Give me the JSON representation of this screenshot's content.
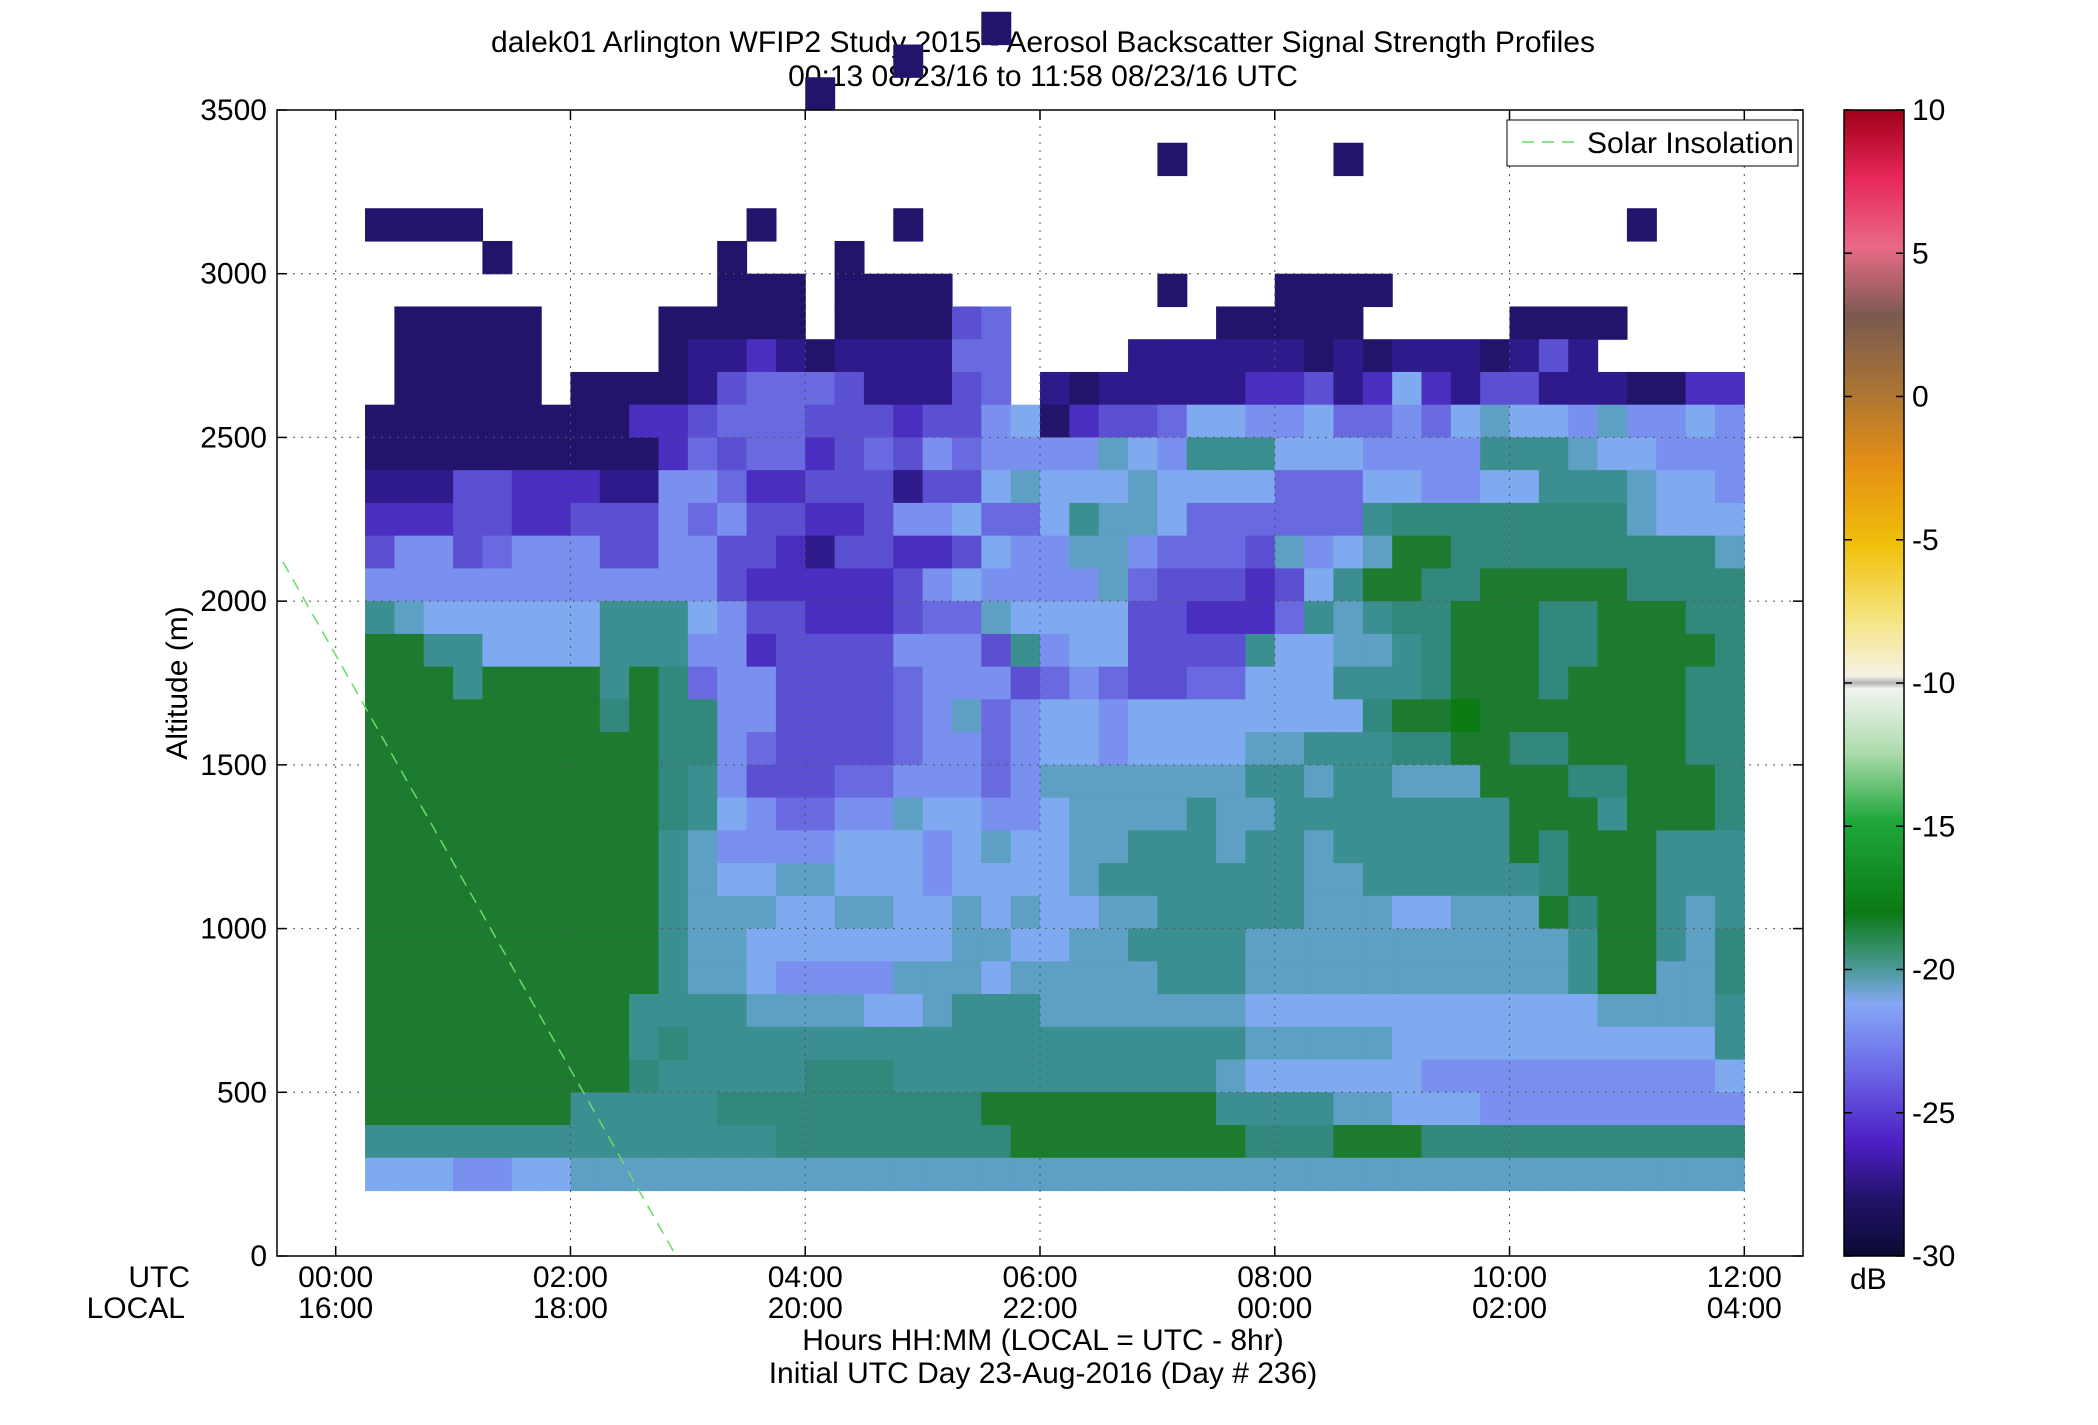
{
  "chart_data": {
    "type": "heatmap",
    "title": "dalek01 Arlington WFIP2 Study 2015 - Aerosol Backscatter Signal Strength Profiles",
    "subtitle": "00:13 08/23/16 to 11:58 08/23/16  UTC",
    "ylabel": "Altitude (m)",
    "xlabel": "Hours HH:MM  (LOCAL = UTC - 8hr)",
    "xlabel2": "Initial UTC Day 23-Aug-2016 (Day # 236)",
    "x_row_labels": [
      "UTC",
      "LOCAL"
    ],
    "xlim_hours": [
      -0.5,
      12.5
    ],
    "ylim": [
      0,
      3500
    ],
    "x_ticks_utc": [
      "00:00",
      "02:00",
      "04:00",
      "06:00",
      "08:00",
      "10:00",
      "12:00"
    ],
    "x_ticks_local": [
      "16:00",
      "18:00",
      "20:00",
      "22:00",
      "00:00",
      "02:00",
      "04:00"
    ],
    "x_tick_hours": [
      0,
      2,
      4,
      6,
      8,
      10,
      12
    ],
    "y_ticks": [
      "0",
      "500",
      "1000",
      "1500",
      "2000",
      "2500",
      "3000",
      "3500"
    ],
    "grid": true,
    "legend": {
      "entry": "Solar Insolation",
      "location": "top-right"
    },
    "colorbar": {
      "unit": "dB",
      "min": -30,
      "max": 10,
      "ticks": [
        "10",
        "5",
        "0",
        "-5",
        "-10",
        "-15",
        "-20",
        "-25",
        "-30"
      ]
    },
    "solar_line": {
      "points_hours_alt": [
        [
          -0.45,
          2120
        ],
        [
          2.9,
          0
        ]
      ],
      "color": "#66dd66"
    },
    "cells": {
      "x_start_hour": 0.25,
      "x_step_hour": 0.25,
      "n_columns": 47,
      "y_start_m": 200,
      "y_step_m": 100,
      "code_scale": "A=-20.5 B=-21.5 C=-22.5 D=-23.5 E=-24.5 F=-25.5 G=-26.5 H=-27.5 I=-28.5 J=-29.5 (dB); K..P = -16.5 to -19.5 dB; '.' = no data",
      "rows_top_down": [
        ".....................J.........................",
        "..................J............................",
        "...............J...............................",
        "...............................................",
        "...........................J.....J.............",
        "...............................................",
        "JJJJ.........J....J........................J...",
        "....J.......J...J..............................",
        "............JJJ.JJJJ.......J...JJJJ............",
        ".JJJJJ....JJJJJ.JJJJGF.......JJJJJ.....JJJJ....",
        ".JJJJJ....JIIHIJIIIIFF....IIIIIIJIJIIIJIGI.....",
        ".JJJJJ.JJJJIGFFFGIIIGF.IJIIIIIHHGIHDHIGGIIIJJHH",
        "JJJJJJJJJHHGFFFGGGHGGEDJHGGFDDEEDFFEFDCDDECEEDE",
        "JJJJJJJJJJHFGFFHGFGEFEEEECDEBBBDDDEEEEBBBCDDEEE",
        "IIIGGHHHIIEEFHHGGGIGGDCDDDCDDDDFFFDDEEDDBBBCDDE",
        "HHHGGHHGGGEFEGGHHGEEDFFDBCCDFFFFFFBAAAAAAAACDDD",
        "GEEGFEEEGGEEGGHIGGHHGDEECCEFFFGCEDCLLAAAAAAAAAC",
        "EEEEEEEEEEEEGHHHHHGEDEEEECFGGGHGDBLLAALLLLLAAAA",
        "BCDDDDDDBBBDEGGHHHGFFCDDDDGGHHHFBCBAALLLAALLLAA",
        "LLBBDDDDBBBEEHGGGGEEEGBEDDGGGGBDDCCBALLLAALLLLA",
        "LLLBLLLLBLAFEEGGGGFEEEGFEFGGFFDDDBBBALLLALLLLAA",
        "LLLLLLLLALAAEEGGGGFECFEDDEDDDDDDDDALLNLLLLLLLAA",
        "LLLLLLLLLLAAEFGGGGFEEFEDDEDDDDCCBBBAALLAALLLLAA",
        "LLLLLLLLLLABEGGGFFEEEFECCCCCCCBBCBBCCCLLLAALLLA",
        "LLLLLLLLLLABDEFFEECDDEEDCCCCBCCBBBBBBBBLLLBLLLA",
        "LLLLLLLLLLBCEEEEDDDEDCDDCCBBBCBBCBBBBBBLALLLBBB",
        "LLLLLLLLLLBCDDCCDDDEDDDDCBBBBBBBCCBBBBBBALLLBBB",
        "LLLLLLLLLLBCCCDDCCDDCDCDDCCBBBBBCCCDDCCCLALLBCB",
        "LLLLLLLLLLBCCDDDDDDDCCDDCCBBBBCCCCCCCCCCCBLLBCA",
        "LLLLLLLLLLBCCDEEEECCCDCCCCCBBBCCCCCCCCCCCBLLCCA",
        "LLLLLLLLLBBBBCCCCDDCBBBCCCCCCCDDDDDDDDDDDDCCCCB",
        "LLLLLLLLLBABBBBBBBBBBBBBBBBBBBCCCCCDDDDDDDDDDDB",
        "LLLLLLLLLABBBBBAAABBBBBBBBBBBCDDDDDDEEEEEEEEEED",
        "LLLLLLLBBBBBAAAAAAAAALLLLLLLLBBBBCCDDDEEEEEEEEE",
        "BBBBBBBBBBBBBBAAAAAAAALLLLLLLLAAALLLAAAAAAAAAAA",
        "DDDEEDDCCCCCCCCCCCCCCCCCCCCCCCCCCCCCCCCCCCCCCCC"
      ]
    }
  }
}
